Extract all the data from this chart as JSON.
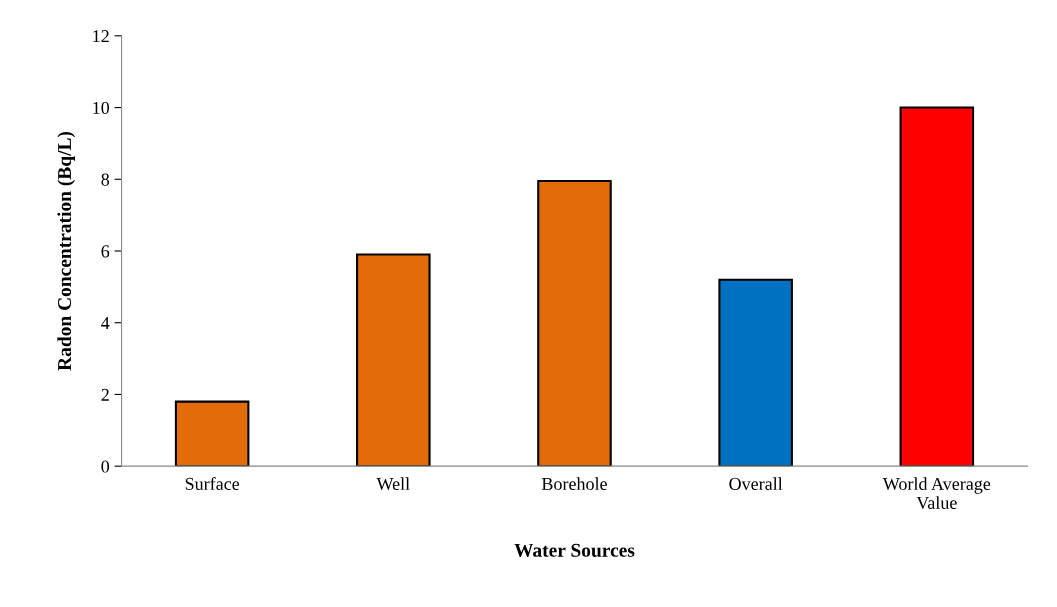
{
  "chart_data": {
    "type": "bar",
    "xlabel": "Water Sources",
    "ylabel": "Radon Concentration (Bq/L)",
    "categories": [
      "Surface",
      "Well",
      "Borehole",
      "Overall",
      "World Average Value"
    ],
    "values": [
      1.8,
      5.9,
      7.95,
      5.2,
      10
    ],
    "colors": [
      "#e36c0a",
      "#e36c0a",
      "#e36c0a",
      "#0070c0",
      "#ff0000"
    ],
    "ylim": [
      0,
      12
    ],
    "yticks": [
      0,
      2,
      4,
      6,
      8,
      10,
      12
    ],
    "grid": false
  }
}
